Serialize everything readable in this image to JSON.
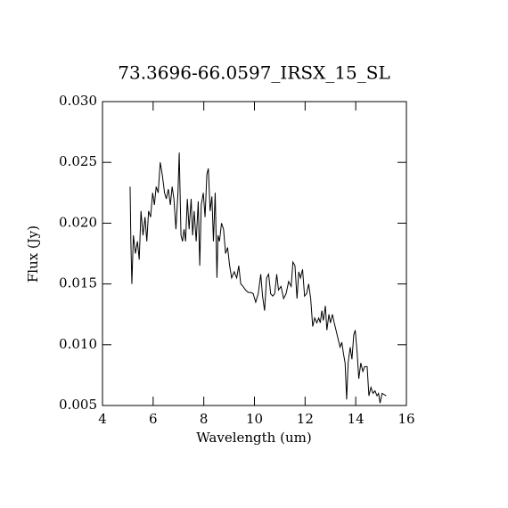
{
  "chart_data": {
    "type": "line",
    "title": "73.3696-66.0597_IRSX_15_SL",
    "xlabel": "Wavelength (um)",
    "ylabel": "Flux (Jy)",
    "color": "#000000",
    "xlim": [
      4,
      16
    ],
    "xticks": [
      4,
      6,
      8,
      10,
      12,
      14,
      16
    ],
    "ylim": [
      0.005,
      0.03
    ],
    "yticks": [
      0.005,
      {
        "value": 0.01,
        "label": "0.010"
      },
      0.015,
      {
        "value": 0.02,
        "label": "0.020"
      },
      0.025,
      {
        "value": 0.03,
        "label": "0.030"
      }
    ],
    "x": [
      5.09,
      5.12,
      5.16,
      5.22,
      5.3,
      5.38,
      5.45,
      5.52,
      5.6,
      5.68,
      5.75,
      5.82,
      5.9,
      5.98,
      6.05,
      6.12,
      6.2,
      6.28,
      6.36,
      6.45,
      6.52,
      6.6,
      6.68,
      6.75,
      6.82,
      6.9,
      6.98,
      7.03,
      7.1,
      7.16,
      7.22,
      7.28,
      7.35,
      7.42,
      7.5,
      7.56,
      7.62,
      7.7,
      7.78,
      7.84,
      7.9,
      7.98,
      8.05,
      8.12,
      8.18,
      8.25,
      8.32,
      8.38,
      8.45,
      8.52,
      8.56,
      8.62,
      8.7,
      8.78,
      8.86,
      8.94,
      9.02,
      9.1,
      9.2,
      9.3,
      9.38,
      9.46,
      9.55,
      9.65,
      9.75,
      9.85,
      9.95,
      10.05,
      10.15,
      10.25,
      10.32,
      10.4,
      10.48,
      10.56,
      10.64,
      10.72,
      10.8,
      10.88,
      10.95,
      11.05,
      11.15,
      11.25,
      11.35,
      11.45,
      11.52,
      11.6,
      11.68,
      11.75,
      11.82,
      11.9,
      11.98,
      12.06,
      12.14,
      12.22,
      12.3,
      12.38,
      12.46,
      12.54,
      12.6,
      12.66,
      12.72,
      12.8,
      12.86,
      12.94,
      13.0,
      13.08,
      13.15,
      13.22,
      13.3,
      13.38,
      13.45,
      13.52,
      13.58,
      13.64,
      13.7,
      13.78,
      13.85,
      13.92,
      13.98,
      14.05,
      14.12,
      14.2,
      14.28,
      14.35,
      14.45,
      14.52,
      14.6,
      14.68,
      14.76,
      14.84,
      14.9,
      14.96,
      15.04,
      15.2
    ],
    "values": [
      0.023,
      0.0185,
      0.015,
      0.019,
      0.0175,
      0.0185,
      0.017,
      0.021,
      0.019,
      0.0205,
      0.0185,
      0.021,
      0.0205,
      0.0225,
      0.0215,
      0.023,
      0.0225,
      0.025,
      0.024,
      0.0225,
      0.022,
      0.0228,
      0.0215,
      0.023,
      0.022,
      0.0195,
      0.0225,
      0.0258,
      0.019,
      0.0185,
      0.0195,
      0.0185,
      0.022,
      0.0195,
      0.022,
      0.019,
      0.021,
      0.0185,
      0.0218,
      0.0165,
      0.0215,
      0.0225,
      0.0205,
      0.024,
      0.0245,
      0.021,
      0.0222,
      0.0185,
      0.0225,
      0.0155,
      0.019,
      0.0185,
      0.02,
      0.0195,
      0.0175,
      0.018,
      0.0165,
      0.0155,
      0.016,
      0.0155,
      0.0165,
      0.015,
      0.0148,
      0.0145,
      0.0143,
      0.0143,
      0.0142,
      0.0135,
      0.0142,
      0.0158,
      0.014,
      0.0128,
      0.0155,
      0.0158,
      0.0142,
      0.014,
      0.0142,
      0.0158,
      0.0145,
      0.0148,
      0.0138,
      0.0142,
      0.0152,
      0.0148,
      0.0168,
      0.0165,
      0.0138,
      0.016,
      0.0155,
      0.0162,
      0.014,
      0.0142,
      0.015,
      0.0138,
      0.0115,
      0.0122,
      0.0118,
      0.0122,
      0.0118,
      0.0128,
      0.012,
      0.0132,
      0.0112,
      0.0125,
      0.0118,
      0.0125,
      0.0118,
      0.0112,
      0.0105,
      0.0098,
      0.0102,
      0.0092,
      0.0085,
      0.0055,
      0.0085,
      0.0098,
      0.0088,
      0.0108,
      0.0112,
      0.0095,
      0.0072,
      0.0085,
      0.0078,
      0.0082,
      0.0082,
      0.0058,
      0.0065,
      0.006,
      0.0062,
      0.0058,
      0.006,
      0.0052,
      0.006,
      0.0058
    ]
  }
}
